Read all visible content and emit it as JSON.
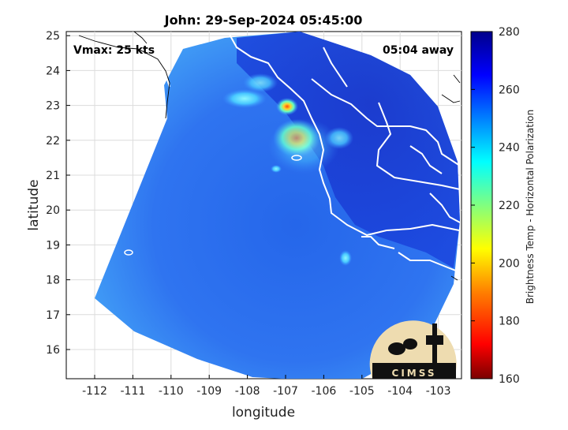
{
  "title": "John: 29-Sep-2024 05:45:00",
  "vmax_text": "Vmax: 25 kts",
  "away_text": "05:04 away",
  "xlabel": "longitude",
  "ylabel": "latitude",
  "x_ticks": [
    "-112",
    "-111",
    "-110",
    "-109",
    "-108",
    "-107",
    "-106",
    "-105",
    "-104",
    "-103"
  ],
  "y_ticks": [
    "16",
    "17",
    "18",
    "19",
    "20",
    "21",
    "22",
    "23",
    "24",
    "25"
  ],
  "colorbar": {
    "label": "Brightness Temp - Horizontal Polarization",
    "ticks": [
      "160",
      "180",
      "200",
      "220",
      "240",
      "260",
      "280"
    ]
  },
  "logo_text": "CIMSS",
  "colors": {
    "ocean_base": "#2d6ff0",
    "swath_edge": "#3fa0f5",
    "warm_core": "#ffe03a",
    "hot_core": "#ff5a10",
    "coastline": "#ffffff"
  }
}
